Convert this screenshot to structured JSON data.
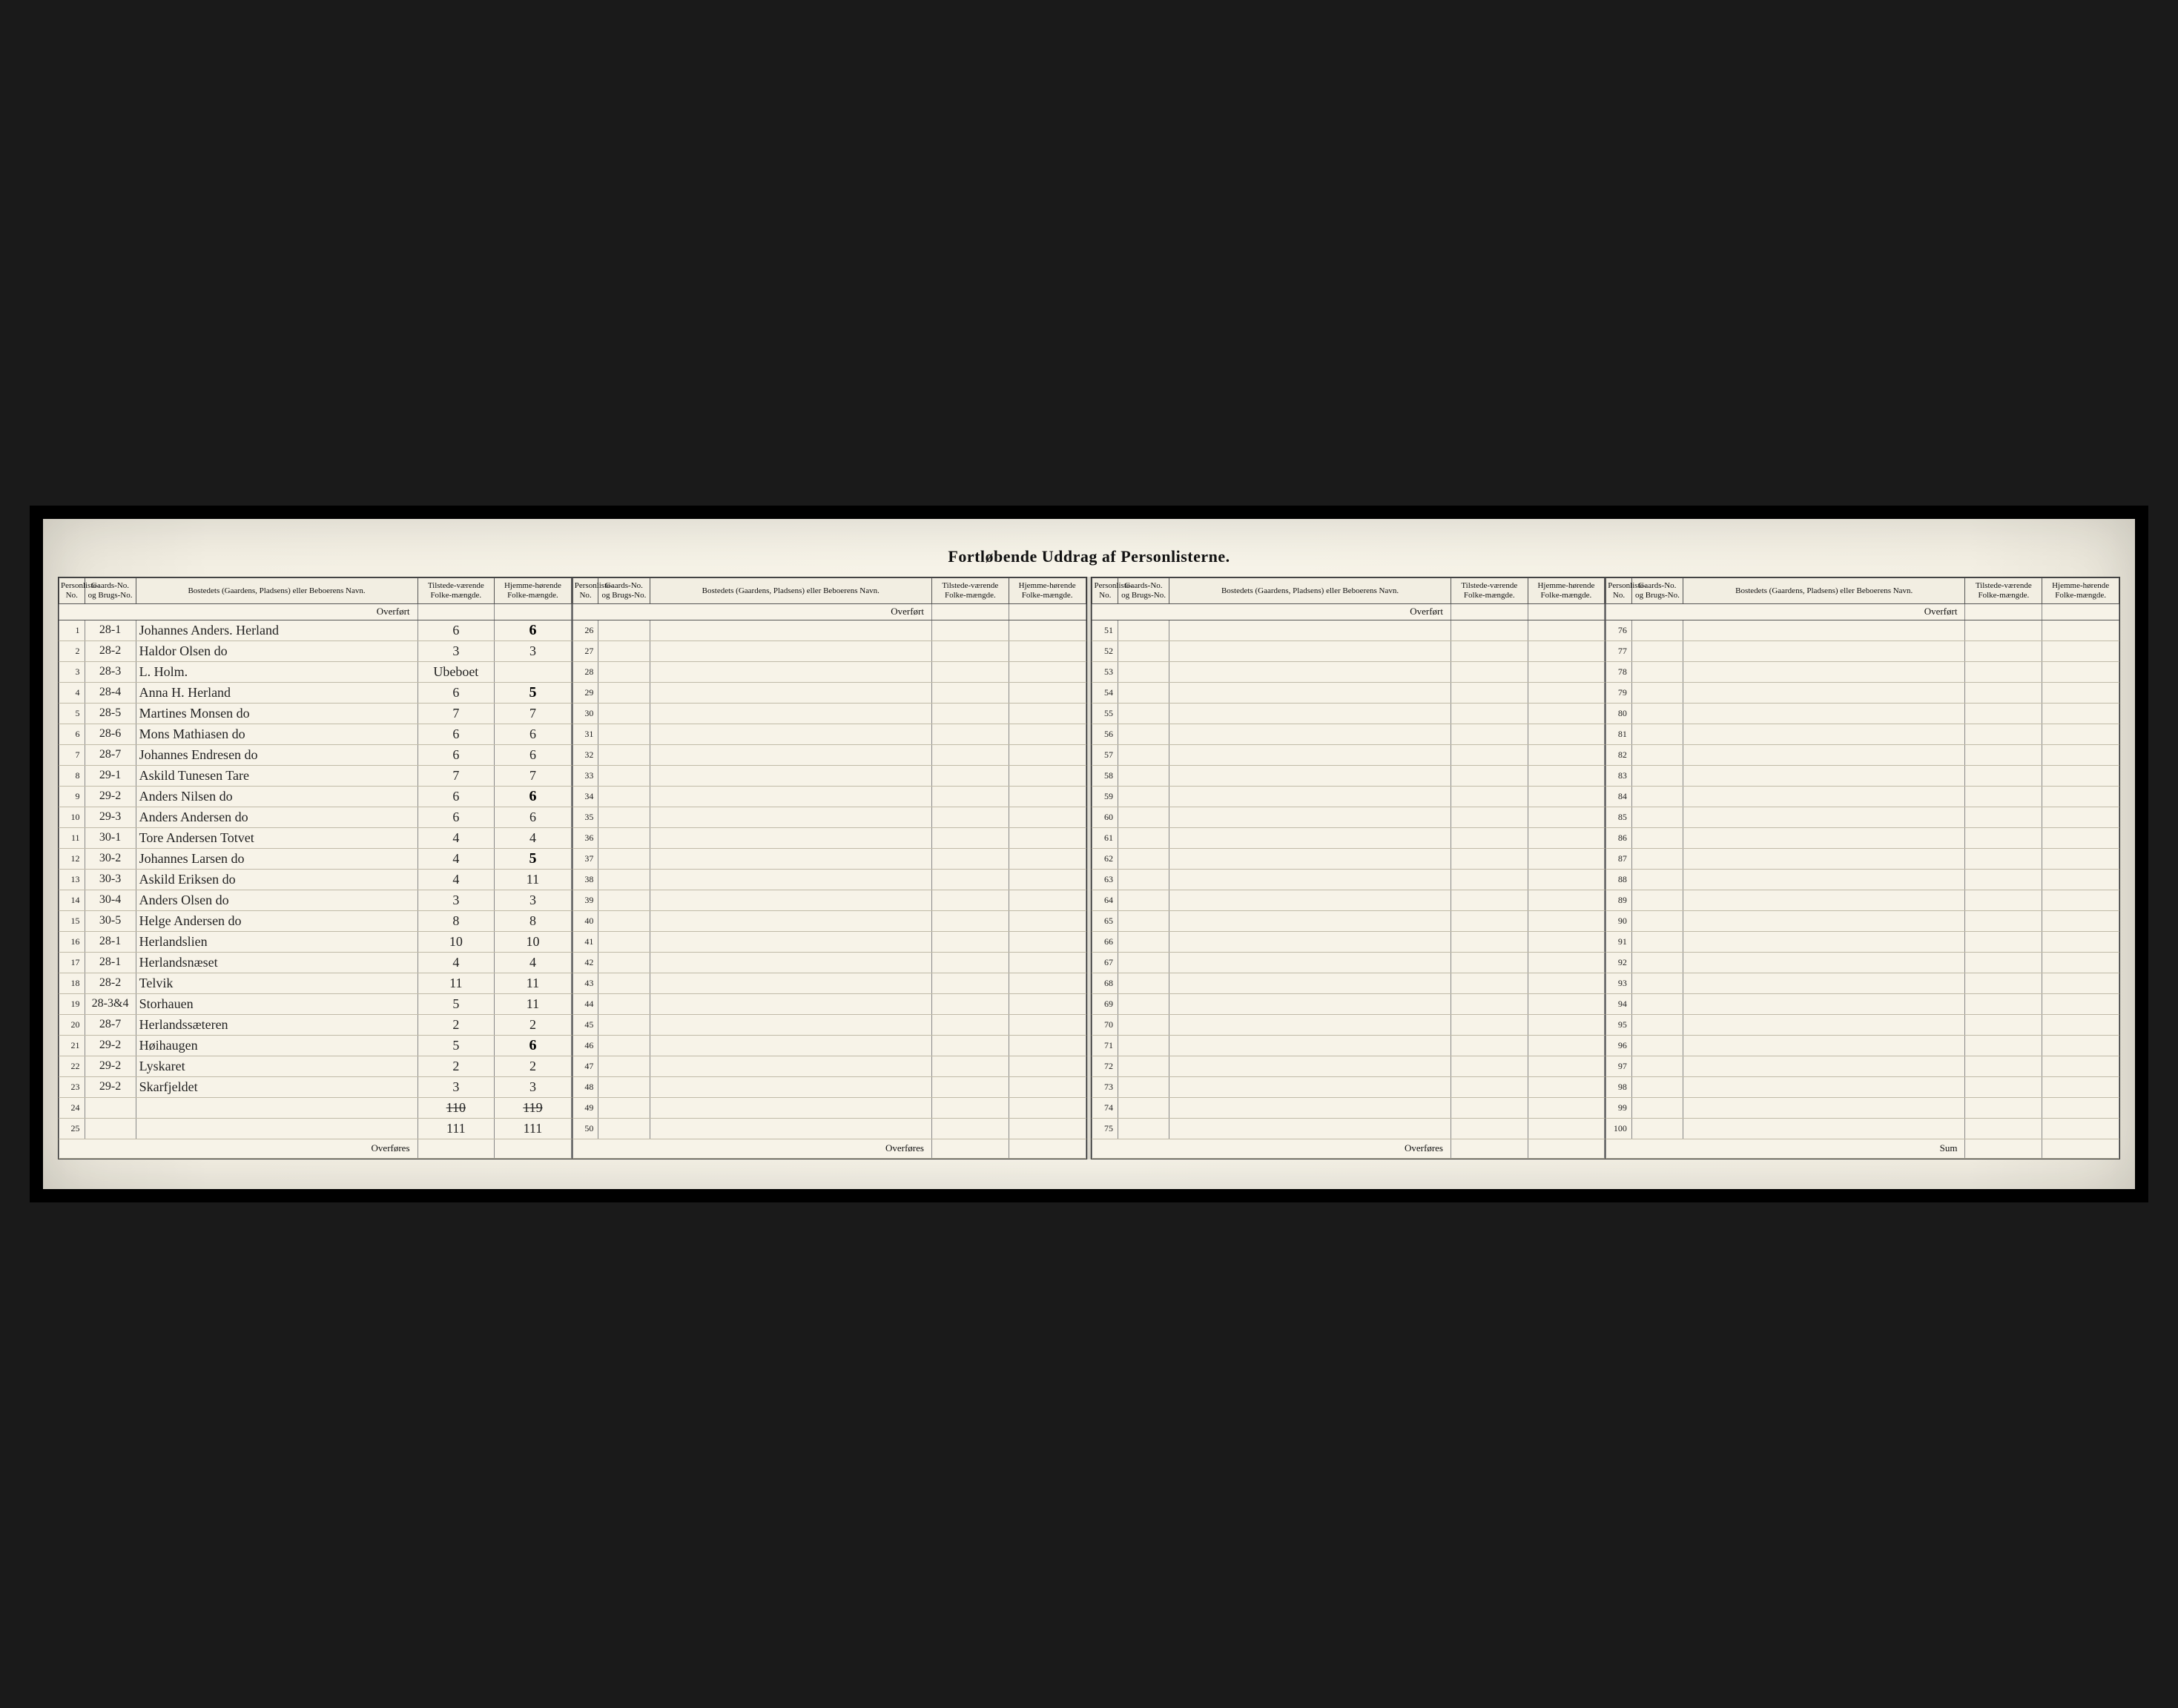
{
  "title": "Fortløbende Uddrag af Personlisterne.",
  "headers": {
    "personliste": "Personliste-No.",
    "gaards": "Gaards-No. og Brugs-No.",
    "bosted": "Bostedets (Gaardens, Pladsens) eller Beboerens Navn.",
    "tilstede": "Tilstede-værende Folke-mængde.",
    "hjemme": "Hjemme-hørende Folke-mængde."
  },
  "labels": {
    "overfort": "Overført",
    "overfores": "Overføres",
    "sum": "Sum"
  },
  "colors": {
    "paper": "#f7f3e8",
    "ink": "#222222",
    "rule": "#555555"
  },
  "blocks": [
    {
      "start": 1,
      "footer": "overfores",
      "rows": [
        {
          "n": 1,
          "g": "28-1",
          "name": "Johannes Anders. Herland",
          "tv": "6",
          "hh": "6",
          "hhBold": true
        },
        {
          "n": 2,
          "g": "28-2",
          "name": "Haldor Olsen   do",
          "tv": "3",
          "hh": "3"
        },
        {
          "n": 3,
          "g": "28-3",
          "name": "L. Holm.",
          "tv": "Ubeboet",
          "hh": ""
        },
        {
          "n": 4,
          "g": "28-4",
          "name": "Anna H. Herland",
          "tv": "6",
          "hh": "5",
          "hhBold": true
        },
        {
          "n": 5,
          "g": "28-5",
          "name": "Martines Monsen do",
          "tv": "7",
          "hh": "7"
        },
        {
          "n": 6,
          "g": "28-6",
          "name": "Mons Mathiasen do",
          "tv": "6",
          "hh": "6"
        },
        {
          "n": 7,
          "g": "28-7",
          "name": "Johannes Endresen do",
          "tv": "6",
          "hh": "6"
        },
        {
          "n": 8,
          "g": "29-1",
          "name": "Askild Tunesen Tare",
          "tv": "7",
          "hh": "7"
        },
        {
          "n": 9,
          "g": "29-2",
          "name": "Anders Nilsen  do",
          "tv": "6",
          "hh": "6",
          "hhBold": true
        },
        {
          "n": 10,
          "g": "29-3",
          "name": "Anders Andersen do",
          "tv": "6",
          "hh": "6"
        },
        {
          "n": 11,
          "g": "30-1",
          "name": "Tore Andersen Totvet",
          "tv": "4",
          "hh": "4"
        },
        {
          "n": 12,
          "g": "30-2",
          "name": "Johannes Larsen  do",
          "tv": "4",
          "hh": "5",
          "hhBold": true
        },
        {
          "n": 13,
          "g": "30-3",
          "name": "Askild Eriksen  do",
          "tv": "4",
          "hh": "11"
        },
        {
          "n": 14,
          "g": "30-4",
          "name": "Anders Olsen   do",
          "tv": "3",
          "hh": "3"
        },
        {
          "n": 15,
          "g": "30-5",
          "name": "Helge Andersen do",
          "tv": "8",
          "hh": "8"
        },
        {
          "n": 16,
          "g": "28-1",
          "name": "Herlandslien",
          "tv": "10",
          "hh": "10"
        },
        {
          "n": 17,
          "g": "28-1",
          "name": "Herlandsnæset",
          "tv": "4",
          "hh": "4"
        },
        {
          "n": 18,
          "g": "28-2",
          "name": "Telvik",
          "tv": "11",
          "hh": "11"
        },
        {
          "n": 19,
          "g": "28-3&4",
          "name": "Storhauen",
          "tv": "5",
          "hh": "11"
        },
        {
          "n": 20,
          "g": "28-7",
          "name": "Herlandssæteren",
          "tv": "2",
          "hh": "2"
        },
        {
          "n": 21,
          "g": "29-2",
          "name": "Høihaugen",
          "tv": "5",
          "hh": "6",
          "hhBold": true
        },
        {
          "n": 22,
          "g": "29-2",
          "name": "Lyskaret",
          "tv": "2",
          "hh": "2"
        },
        {
          "n": 23,
          "g": "29-2",
          "name": "Skarfjeldet",
          "tv": "3",
          "hh": "3"
        },
        {
          "n": 24,
          "g": "",
          "name": "",
          "tv": "110",
          "hh": "119",
          "strike": true
        },
        {
          "n": 25,
          "g": "",
          "name": "",
          "tv": "111",
          "hh": "111"
        }
      ]
    },
    {
      "start": 26,
      "footer": "overfores",
      "rows": [
        {
          "n": 26
        },
        {
          "n": 27
        },
        {
          "n": 28
        },
        {
          "n": 29
        },
        {
          "n": 30
        },
        {
          "n": 31
        },
        {
          "n": 32
        },
        {
          "n": 33
        },
        {
          "n": 34
        },
        {
          "n": 35
        },
        {
          "n": 36
        },
        {
          "n": 37
        },
        {
          "n": 38
        },
        {
          "n": 39
        },
        {
          "n": 40
        },
        {
          "n": 41
        },
        {
          "n": 42
        },
        {
          "n": 43
        },
        {
          "n": 44
        },
        {
          "n": 45
        },
        {
          "n": 46
        },
        {
          "n": 47
        },
        {
          "n": 48
        },
        {
          "n": 49
        },
        {
          "n": 50
        }
      ]
    },
    {
      "start": 51,
      "footer": "overfores",
      "rows": [
        {
          "n": 51
        },
        {
          "n": 52
        },
        {
          "n": 53
        },
        {
          "n": 54
        },
        {
          "n": 55
        },
        {
          "n": 56
        },
        {
          "n": 57
        },
        {
          "n": 58
        },
        {
          "n": 59
        },
        {
          "n": 60
        },
        {
          "n": 61
        },
        {
          "n": 62
        },
        {
          "n": 63
        },
        {
          "n": 64
        },
        {
          "n": 65
        },
        {
          "n": 66
        },
        {
          "n": 67
        },
        {
          "n": 68
        },
        {
          "n": 69
        },
        {
          "n": 70
        },
        {
          "n": 71
        },
        {
          "n": 72
        },
        {
          "n": 73
        },
        {
          "n": 74
        },
        {
          "n": 75
        }
      ]
    },
    {
      "start": 76,
      "footer": "sum",
      "rows": [
        {
          "n": 76
        },
        {
          "n": 77
        },
        {
          "n": 78
        },
        {
          "n": 79
        },
        {
          "n": 80
        },
        {
          "n": 81
        },
        {
          "n": 82
        },
        {
          "n": 83
        },
        {
          "n": 84
        },
        {
          "n": 85
        },
        {
          "n": 86
        },
        {
          "n": 87
        },
        {
          "n": 88
        },
        {
          "n": 89
        },
        {
          "n": 90
        },
        {
          "n": 91
        },
        {
          "n": 92
        },
        {
          "n": 93
        },
        {
          "n": 94
        },
        {
          "n": 95
        },
        {
          "n": 96
        },
        {
          "n": 97
        },
        {
          "n": 98
        },
        {
          "n": 99
        },
        {
          "n": 100
        }
      ]
    }
  ]
}
